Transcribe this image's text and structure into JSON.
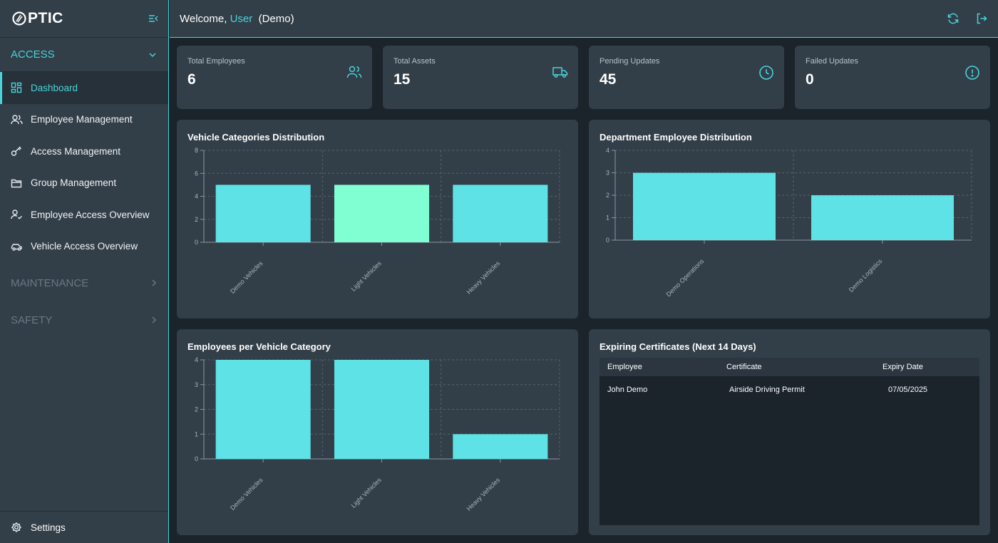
{
  "brand": {
    "logo_text": "PTIC"
  },
  "colors": {
    "accent": "#4ad3d9",
    "bar_primary": "#5ee2e6",
    "bar_highlight": "#80ffd3",
    "panel": "#323e48",
    "background": "#1b232b"
  },
  "sidebar": {
    "sections": [
      {
        "label": "ACCESS",
        "expanded": true
      },
      {
        "label": "MAINTENANCE",
        "expanded": false
      },
      {
        "label": "SAFETY",
        "expanded": false
      }
    ],
    "items": [
      {
        "label": "Dashboard",
        "icon": "dashboard-grid-icon",
        "active": true
      },
      {
        "label": "Employee Management",
        "icon": "users-icon"
      },
      {
        "label": "Access Management",
        "icon": "key-icon"
      },
      {
        "label": "Group Management",
        "icon": "folder-icon"
      },
      {
        "label": "Employee Access Overview",
        "icon": "user-check-icon"
      },
      {
        "label": "Vehicle Access Overview",
        "icon": "car-icon"
      }
    ],
    "settings_label": "Settings"
  },
  "header": {
    "welcome_prefix": "Welcome,",
    "user_name": "User",
    "mode": "(Demo)"
  },
  "stats": [
    {
      "label": "Total Employees",
      "value": "6",
      "icon": "users-icon"
    },
    {
      "label": "Total Assets",
      "value": "15",
      "icon": "truck-icon"
    },
    {
      "label": "Pending Updates",
      "value": "45",
      "icon": "clock-icon"
    },
    {
      "label": "Failed Updates",
      "value": "0",
      "icon": "alert-circle-icon"
    }
  ],
  "chart_data": [
    {
      "type": "bar",
      "title": "Vehicle Categories Distribution",
      "categories": [
        "Demo Vehicles",
        "Light Vehicles",
        "Heavy Vehicles"
      ],
      "values": [
        5,
        5,
        5
      ],
      "ylim": [
        0,
        8
      ],
      "yticks": [
        0,
        2,
        4,
        6,
        8
      ],
      "highlighted_index": 1,
      "grid": true
    },
    {
      "type": "bar",
      "title": "Department Employee Distribution",
      "categories": [
        "Demo Operations",
        "Demo Logistics"
      ],
      "values": [
        3,
        2
      ],
      "ylim": [
        0,
        4
      ],
      "yticks": [
        0,
        1,
        2,
        3,
        4
      ],
      "grid": true
    },
    {
      "type": "bar",
      "title": "Employees per Vehicle Category",
      "categories": [
        "Demo Vehicles",
        "Light Vehicles",
        "Heavy Vehicles"
      ],
      "values": [
        4,
        4,
        1
      ],
      "ylim": [
        0,
        4
      ],
      "yticks": [
        0,
        1,
        2,
        3,
        4
      ],
      "grid": true
    }
  ],
  "certificates": {
    "title": "Expiring Certificates (Next 14 Days)",
    "columns": [
      "Employee",
      "Certificate",
      "Expiry Date"
    ],
    "rows": [
      [
        "John Demo",
        "Airside Driving Permit",
        "07/05/2025"
      ]
    ]
  }
}
